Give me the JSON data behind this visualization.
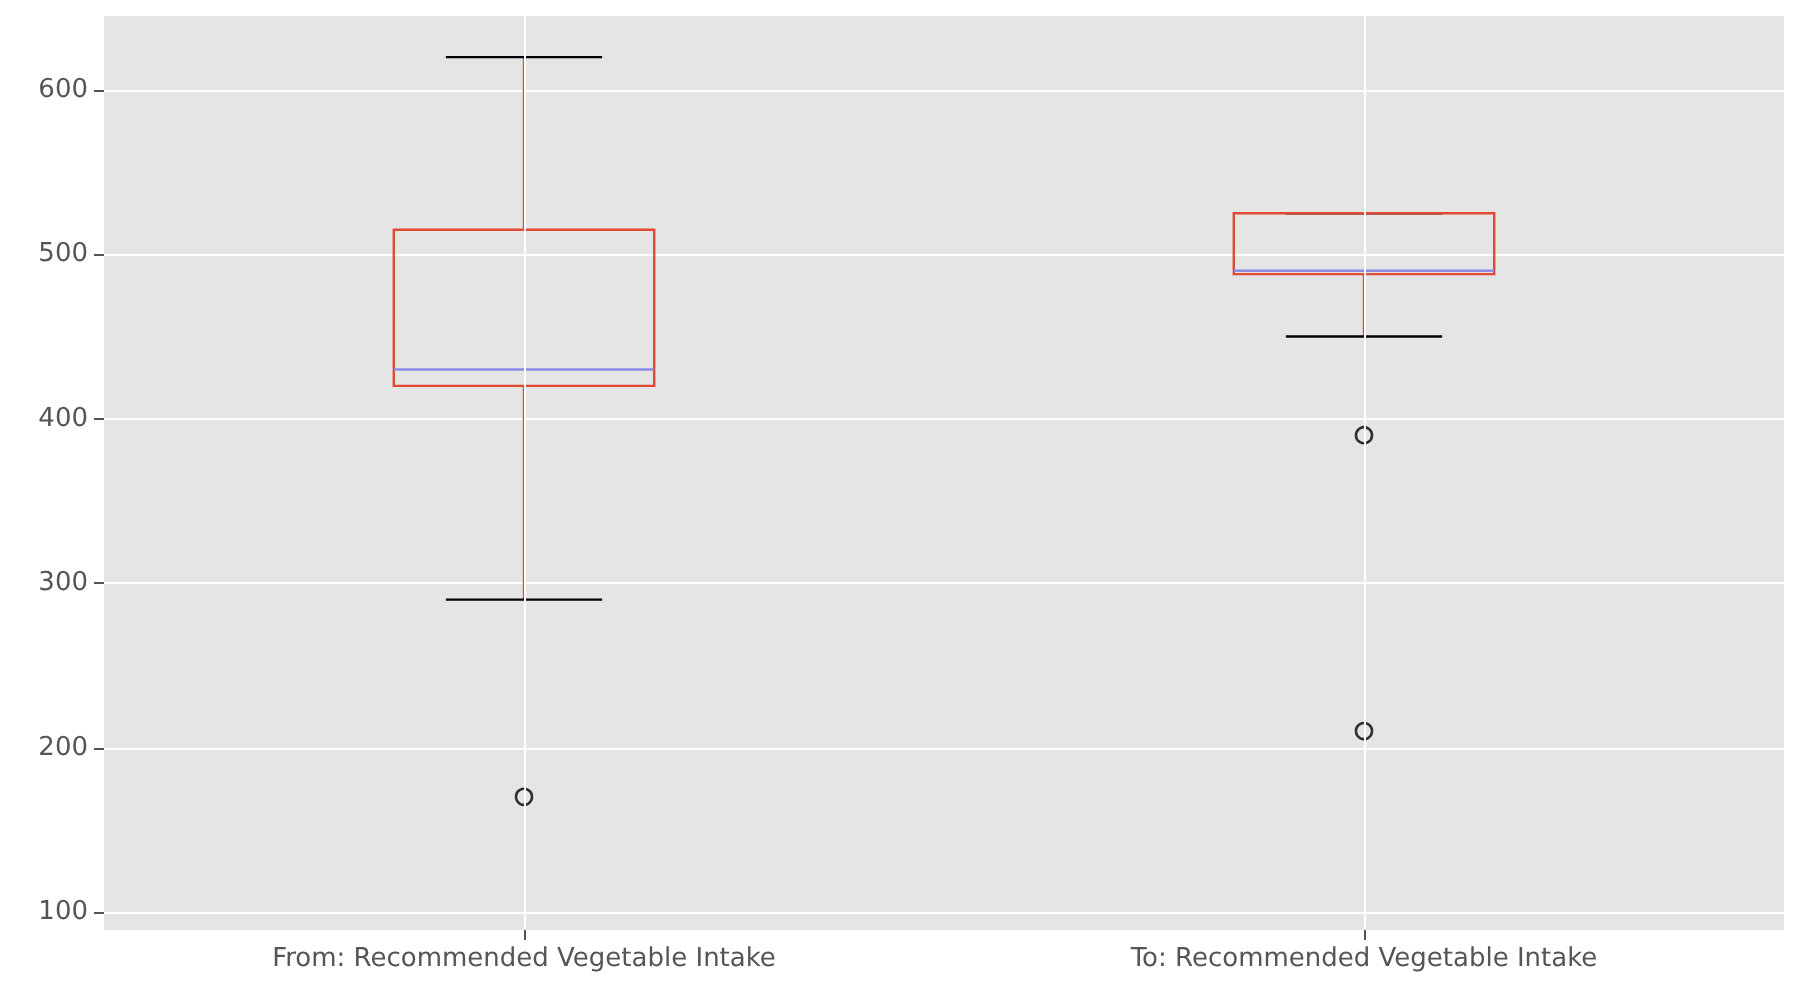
{
  "chart_data": {
    "type": "box",
    "categories": [
      "From: Recommended Vegetable Intake",
      "To: Recommended Vegetable Intake"
    ],
    "boxes": [
      {
        "low": 290,
        "q1": 420,
        "median": 430,
        "q3": 515,
        "high": 620,
        "outliers": [
          170
        ]
      },
      {
        "low": 450,
        "q1": 488,
        "median": 490,
        "q3": 525,
        "high": 525,
        "outliers": [
          390,
          210
        ]
      }
    ],
    "color": "#e24a33",
    "ylim": [
      89,
      645
    ],
    "yticks": [
      100,
      200,
      300,
      400,
      500,
      600
    ],
    "grid": true,
    "marker": "circle"
  }
}
